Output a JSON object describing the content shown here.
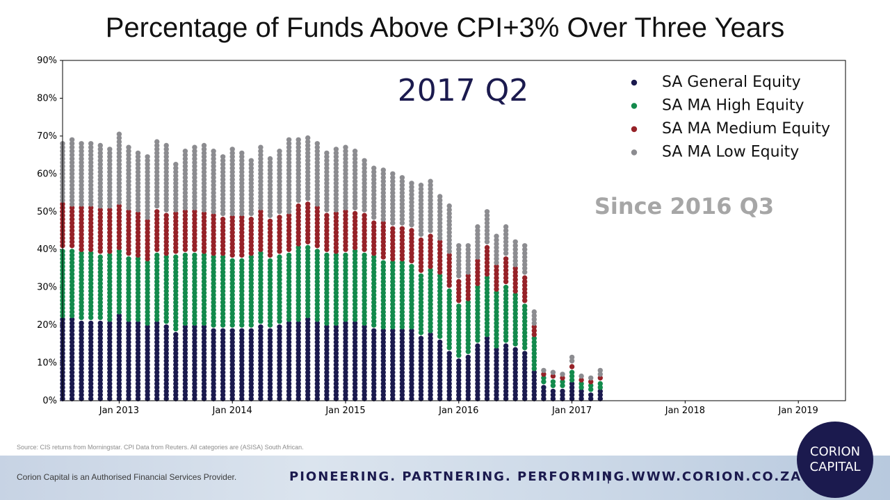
{
  "title": "Percentage of Funds Above CPI+3% Over Three Years",
  "annotations": {
    "period": "2017 Q2",
    "since": "Since 2016 Q3"
  },
  "source": "Source: CIS returns from Morningstar. CPI Data from Reuters. All categories are (ASISA) South African.",
  "footer": {
    "disclaimer": "Corion Capital is an Authorised Financial Services Provider.",
    "tagline": "PIONEERING. PARTNERING. PERFORMING.",
    "separator": "|",
    "website": "WWW.CORION.CO.ZA",
    "logo_line1": "CORION",
    "logo_line2": "CAPITAL"
  },
  "chart_data": {
    "type": "stacked-dot-column",
    "title": "Percentage of Funds Above CPI+3% Over Three Years",
    "xlabel": "",
    "ylabel": "",
    "ylim": [
      0,
      90
    ],
    "y_ticks": [
      "0%",
      "10%",
      "20%",
      "30%",
      "40%",
      "50%",
      "60%",
      "70%",
      "80%",
      "90%"
    ],
    "x_ticks": [
      "Jan 2013",
      "Jan 2014",
      "Jan 2015",
      "Jan 2016",
      "Jan 2017",
      "Jan 2018",
      "Jan 2019"
    ],
    "x_range": [
      "2012-07",
      "2019-06"
    ],
    "legend_position": "top-right",
    "dates": [
      "2012-07",
      "2012-08",
      "2012-09",
      "2012-10",
      "2012-11",
      "2012-12",
      "2013-01",
      "2013-02",
      "2013-03",
      "2013-04",
      "2013-05",
      "2013-06",
      "2013-07",
      "2013-08",
      "2013-09",
      "2013-10",
      "2013-11",
      "2013-12",
      "2014-01",
      "2014-02",
      "2014-03",
      "2014-04",
      "2014-05",
      "2014-06",
      "2014-07",
      "2014-08",
      "2014-09",
      "2014-10",
      "2014-11",
      "2014-12",
      "2015-01",
      "2015-02",
      "2015-03",
      "2015-04",
      "2015-05",
      "2015-06",
      "2015-07",
      "2015-08",
      "2015-09",
      "2015-10",
      "2015-11",
      "2015-12",
      "2016-01",
      "2016-02",
      "2016-03",
      "2016-04",
      "2016-05",
      "2016-06",
      "2016-07",
      "2016-08",
      "2016-09",
      "2016-10",
      "2016-11",
      "2016-12",
      "2017-01",
      "2017-02",
      "2017-03",
      "2017-04"
    ],
    "series": [
      {
        "name": "SA General Equity",
        "color": "#1b1a4e",
        "values": [
          22,
          22,
          21.5,
          21.5,
          21.5,
          21,
          23,
          21,
          21,
          20,
          21,
          20.5,
          18.5,
          20,
          20,
          20,
          19.5,
          19.5,
          19.5,
          19.5,
          19.5,
          20.5,
          19.5,
          20.5,
          21,
          21,
          22,
          21,
          20,
          20,
          21,
          21,
          20,
          19.5,
          19,
          19,
          19,
          19,
          17.5,
          18,
          16.5,
          13.5,
          11.5,
          12.5,
          15.5,
          17,
          14,
          15.5,
          14.5,
          13.5,
          8,
          4.5,
          3.5,
          3.5,
          5,
          3,
          2.5,
          3
        ]
      },
      {
        "name": "SA MA High Equity",
        "color": "#138a4c",
        "values": [
          18.5,
          18.5,
          18,
          18,
          17.5,
          18,
          17,
          17.5,
          17,
          17,
          18.5,
          18,
          20.5,
          19.5,
          19.5,
          19,
          19,
          19,
          18.5,
          18.5,
          19,
          19,
          18.5,
          18.5,
          18.5,
          20,
          19.5,
          19.5,
          19.5,
          19,
          18.5,
          19,
          19.5,
          19,
          18.5,
          18,
          18,
          17.5,
          16.5,
          17,
          17,
          16.5,
          14.5,
          14,
          15,
          16,
          15,
          15.5,
          14,
          12.5,
          9,
          2,
          2.5,
          2,
          3.5,
          2,
          2,
          2.5
        ]
      },
      {
        "name": "SA MA Medium Equity",
        "color": "#962228",
        "values": [
          12,
          11,
          12,
          12,
          12,
          12,
          12,
          12,
          12,
          11,
          11.5,
          11.5,
          11,
          11,
          11,
          11,
          11,
          10.5,
          11,
          11,
          10.5,
          11,
          10.5,
          10.5,
          10,
          11.5,
          11.5,
          11,
          10.5,
          11,
          11,
          10.5,
          10.5,
          9.5,
          10,
          9.5,
          9.5,
          9.5,
          9.5,
          9.5,
          9,
          9,
          6.5,
          7,
          7,
          8.5,
          7,
          7.5,
          7,
          7.5,
          3,
          1,
          1,
          1,
          1.5,
          1,
          1,
          1
        ]
      },
      {
        "name": "SA MA Low Equity",
        "color": "#8c8c90",
        "values": [
          16,
          18.5,
          17.5,
          17.5,
          17,
          16.5,
          19,
          17,
          16.5,
          17,
          18.5,
          18.5,
          13.5,
          16.5,
          17,
          18,
          17.5,
          16.5,
          18,
          17,
          15.5,
          17,
          16.5,
          17.5,
          20,
          17.5,
          17,
          17,
          16,
          17.5,
          17.5,
          16,
          14.5,
          14.5,
          14.5,
          14.5,
          13,
          12,
          14,
          14,
          12,
          13.5,
          9,
          8.5,
          9.5,
          9,
          8,
          8.5,
          7.5,
          8.5,
          4,
          1,
          1,
          1,
          2,
          1,
          1,
          2
        ]
      }
    ]
  }
}
